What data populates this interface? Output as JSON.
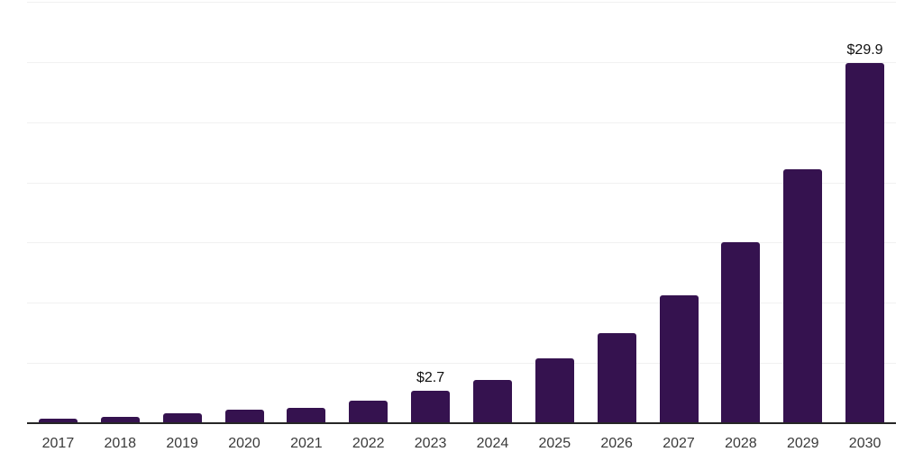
{
  "chart_data": {
    "type": "bar",
    "title": "",
    "categories": [
      "2017",
      "2018",
      "2019",
      "2020",
      "2021",
      "2022",
      "2023",
      "2024",
      "2025",
      "2026",
      "2027",
      "2028",
      "2029",
      "2030"
    ],
    "values": [
      0.4,
      0.5,
      0.8,
      1.1,
      1.3,
      1.9,
      2.7,
      3.6,
      5.4,
      7.5,
      10.6,
      15.0,
      21.1,
      29.9
    ],
    "data_labels": [
      "",
      "",
      "",
      "",
      "",
      "",
      "$2.7",
      "",
      "",
      "",
      "",
      "",
      "",
      "$29.9"
    ],
    "xlabel": "",
    "ylabel": "",
    "ylim": [
      0,
      35
    ],
    "gridline_step": 5,
    "grid": "horizontal",
    "legend_position": "none"
  },
  "style": {
    "bar_color": "#35124F",
    "axis_line_color": "#262626",
    "gridline_color": "#f1f1f1",
    "tick_label_color": "#3a3a3a",
    "data_label_color": "#111111",
    "background_color": "#ffffff"
  }
}
